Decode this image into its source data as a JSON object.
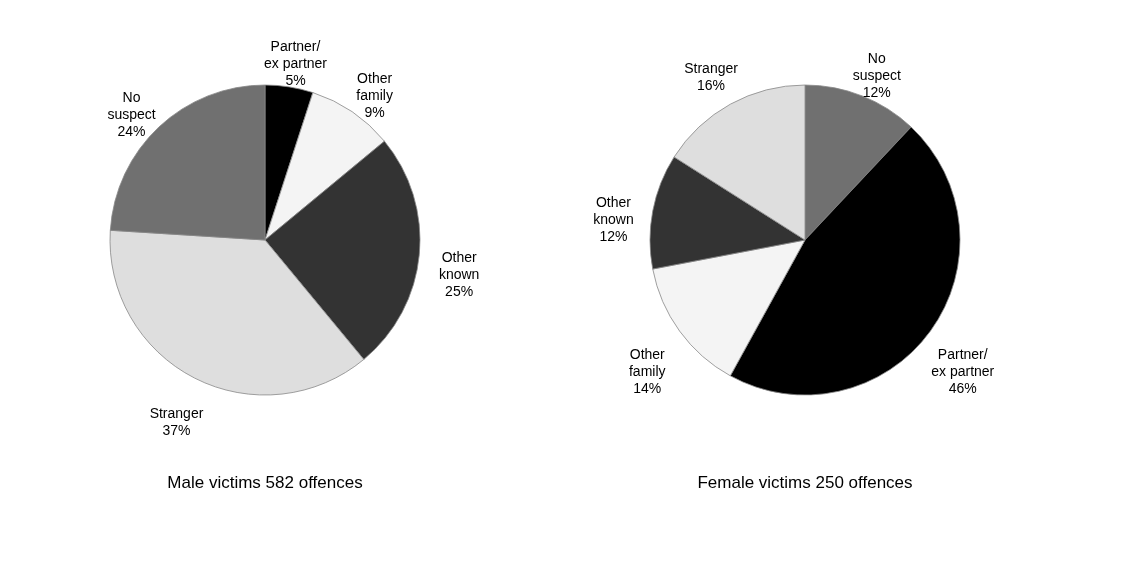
{
  "chart_data": [
    {
      "type": "pie",
      "title": "Male victims 582 offences",
      "categories": [
        "Partner/\nex partner",
        "Other\nfamily",
        "Other\nknown",
        "Stranger",
        "No\nsuspect"
      ],
      "values": [
        5,
        9,
        25,
        37,
        24
      ],
      "value_labels": [
        "5%",
        "9%",
        "25%",
        "37%",
        "24%"
      ],
      "colors": [
        "#000000",
        "#f4f4f4",
        "#333333",
        "#dedede",
        "#707070"
      ]
    },
    {
      "type": "pie",
      "title": "Female victims 250 offences",
      "categories": [
        "No\nsuspect",
        "Partner/\nex partner",
        "Other\nfamily",
        "Other\nknown",
        "Stranger"
      ],
      "values": [
        12,
        46,
        14,
        12,
        16
      ],
      "value_labels": [
        "12%",
        "46%",
        "14%",
        "12%",
        "16%"
      ],
      "colors": [
        "#707070",
        "#000000",
        "#f4f4f4",
        "#333333",
        "#dedede"
      ]
    }
  ]
}
